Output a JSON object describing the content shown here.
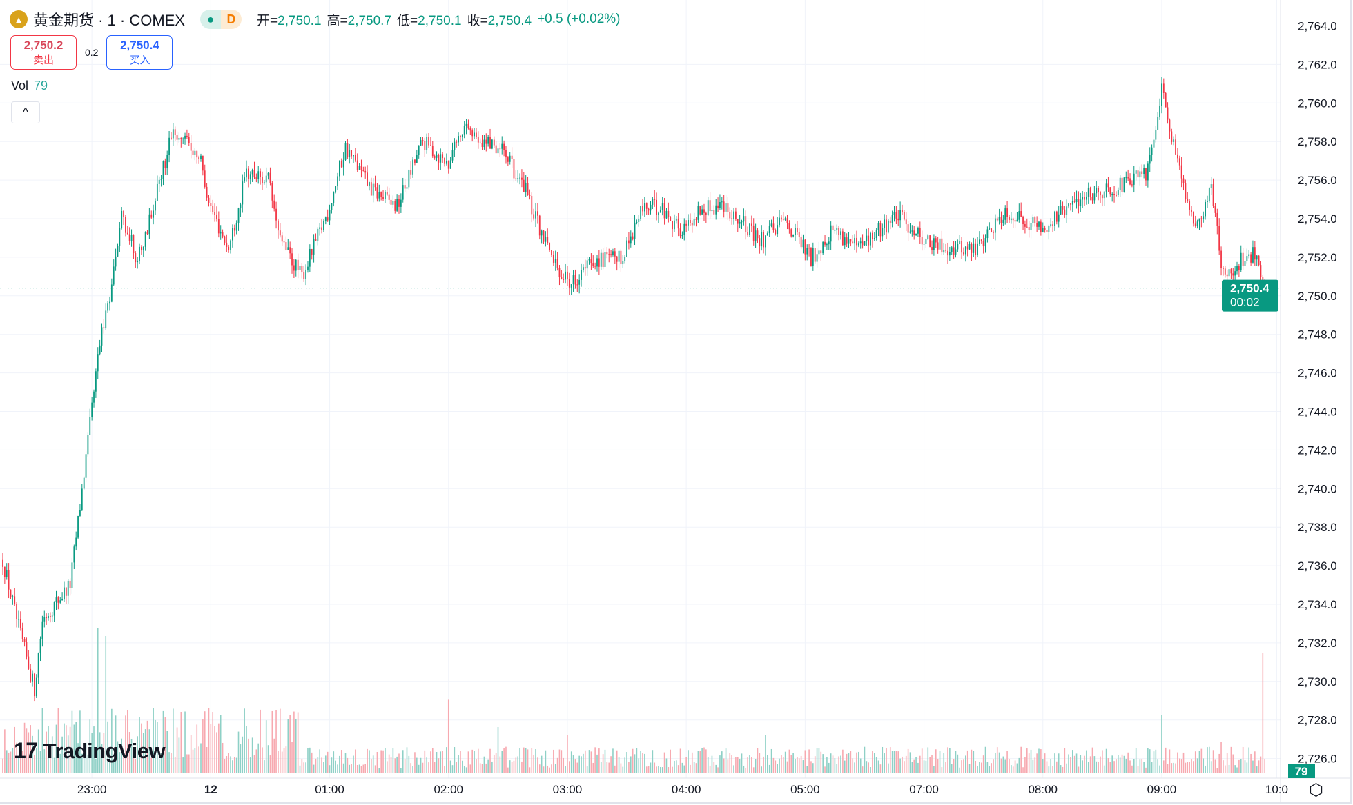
{
  "header": {
    "symbol_title": "黄金期货 · 1 · COMEX",
    "logo_icon": "gold-bars-icon",
    "status_dot": "●",
    "period_badge": "D",
    "ohlc": {
      "open_label": "开=",
      "open": "2,750.1",
      "high_label": "高=",
      "high": "2,750.7",
      "low_label": "低=",
      "low": "2,750.1",
      "close_label": "收=",
      "close": "2,750.4",
      "change": "+0.5 (+0.02%)"
    }
  },
  "trade": {
    "sell_price": "2,750.2",
    "sell_label": "卖出",
    "spread": "0.2",
    "buy_price": "2,750.4",
    "buy_label": "买入"
  },
  "volume_legend": {
    "label": "Vol",
    "value": "79"
  },
  "collapse_button": "^",
  "watermark": "TradingView",
  "price_badge": {
    "price": "2,750.4",
    "countdown": "00:02"
  },
  "volume_badge": "79",
  "colors": {
    "up": "#089981",
    "down": "#f23645",
    "vol_up": "#8ed0c6",
    "vol_down": "#f7a9b0",
    "grid": "#f0f3fa",
    "badge": "#089981"
  },
  "chart_data": {
    "type": "candlestick",
    "title": "黄金期货 · 1 · COMEX",
    "interval_minutes": 1,
    "ylim": [
      2725,
      2765
    ],
    "y_ticks": [
      "2,764.0",
      "2,762.0",
      "2,760.0",
      "2,758.0",
      "2,756.0",
      "2,754.0",
      "2,752.0",
      "2,750.0",
      "2,748.0",
      "2,746.0",
      "2,744.0",
      "2,742.0",
      "2,740.0",
      "2,738.0",
      "2,736.0",
      "2,734.0",
      "2,732.0",
      "2,730.0",
      "2,728.0",
      "2,726.0"
    ],
    "y_tick_values": [
      2764,
      2762,
      2760,
      2758,
      2756,
      2754,
      2752,
      2750,
      2748,
      2746,
      2744,
      2742,
      2740,
      2738,
      2736,
      2734,
      2732,
      2730,
      2728,
      2726
    ],
    "x_ticks": [
      {
        "label": "23:00",
        "bar": 45
      },
      {
        "label": "12",
        "bar": 105
      },
      {
        "label": "01:00",
        "bar": 165
      },
      {
        "label": "02:00",
        "bar": 225
      },
      {
        "label": "03:00",
        "bar": 285
      },
      {
        "label": "04:00",
        "bar": 345
      },
      {
        "label": "05:00",
        "bar": 405
      },
      {
        "label": "07:00",
        "bar": 465
      },
      {
        "label": "08:00",
        "bar": 525
      },
      {
        "label": "09:00",
        "bar": 585
      },
      {
        "label": "10:0",
        "bar": 643
      }
    ],
    "bar_count": 638,
    "price_path": [
      [
        0,
        2736.3
      ],
      [
        7,
        2733.2
      ],
      [
        16,
        2729.6
      ],
      [
        20,
        2733.2
      ],
      [
        34,
        2735.0
      ],
      [
        40,
        2739.9
      ],
      [
        49,
        2747.5
      ],
      [
        55,
        2750.6
      ],
      [
        60,
        2754.2
      ],
      [
        68,
        2751.9
      ],
      [
        77,
        2755.0
      ],
      [
        86,
        2758.6
      ],
      [
        99,
        2757.3
      ],
      [
        105,
        2754.6
      ],
      [
        114,
        2752.4
      ],
      [
        123,
        2756.4
      ],
      [
        134,
        2756.0
      ],
      [
        140,
        2752.8
      ],
      [
        151,
        2751.0
      ],
      [
        164,
        2754.3
      ],
      [
        173,
        2757.7
      ],
      [
        186,
        2755.5
      ],
      [
        199,
        2754.6
      ],
      [
        212,
        2758.0
      ],
      [
        225,
        2756.8
      ],
      [
        232,
        2758.6
      ],
      [
        251,
        2757.7
      ],
      [
        264,
        2755.5
      ],
      [
        277,
        2751.9
      ],
      [
        286,
        2750.6
      ],
      [
        299,
        2751.9
      ],
      [
        312,
        2751.9
      ],
      [
        323,
        2754.6
      ],
      [
        332,
        2754.6
      ],
      [
        343,
        2753.3
      ],
      [
        351,
        2754.4
      ],
      [
        364,
        2754.8
      ],
      [
        382,
        2752.8
      ],
      [
        395,
        2753.9
      ],
      [
        408,
        2751.9
      ],
      [
        419,
        2753.5
      ],
      [
        432,
        2752.4
      ],
      [
        451,
        2754.2
      ],
      [
        469,
        2752.6
      ],
      [
        491,
        2752.4
      ],
      [
        506,
        2754.4
      ],
      [
        525,
        2753.5
      ],
      [
        547,
        2755.3
      ],
      [
        565,
        2755.7
      ],
      [
        578,
        2756.4
      ],
      [
        585,
        2760.9
      ],
      [
        591,
        2757.7
      ],
      [
        602,
        2753.3
      ],
      [
        610,
        2755.7
      ],
      [
        616,
        2751.0
      ],
      [
        626,
        2751.9
      ],
      [
        632,
        2752.2
      ],
      [
        637,
        2750.4
      ]
    ],
    "last_price": 2750.4,
    "volume_spikes": [
      [
        48,
        95
      ],
      [
        52,
        90
      ],
      [
        90,
        40
      ],
      [
        140,
        42
      ],
      [
        225,
        48
      ],
      [
        250,
        30
      ],
      [
        285,
        25
      ],
      [
        385,
        25
      ],
      [
        585,
        38
      ],
      [
        615,
        20
      ],
      [
        636,
        79
      ]
    ]
  }
}
